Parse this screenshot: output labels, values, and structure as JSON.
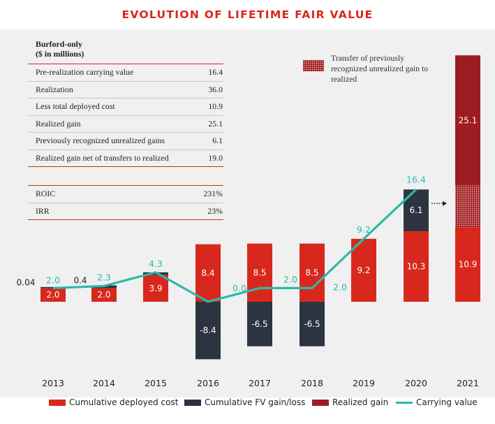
{
  "title": "EVOLUTION OF LIFETIME FAIR VALUE",
  "table": {
    "header_line1": "Burford-only",
    "header_line2": "($ in millions)",
    "rows": [
      {
        "label": "Pre-realization carrying value",
        "value": "16.4"
      },
      {
        "label": "Realization",
        "value": "36.0"
      },
      {
        "label": "Less total deployed cost",
        "value": "10.9"
      },
      {
        "label": "Realized gain",
        "value": "25.1"
      },
      {
        "label": "Previously recognized unrealized gains",
        "value": "6.1"
      },
      {
        "label": "Realized gain net of transfers to realized",
        "value": "19.0"
      }
    ],
    "metrics": [
      {
        "label": "ROIC",
        "value": "231%"
      },
      {
        "label": "IRR",
        "value": "23%"
      }
    ]
  },
  "transfer_note": "Transfer of previously recognized unrealized gain to realized",
  "colors": {
    "deployed": "#d8281d",
    "fv": "#2b3440",
    "realized": "#9d1c21",
    "carrying": "#2bb9a9",
    "title": "#d8281d"
  },
  "chart_data": {
    "type": "bar",
    "title": "EVOLUTION OF LIFETIME FAIR VALUE",
    "categories": [
      "2013",
      "2014",
      "2015",
      "2016",
      "2017",
      "2018",
      "2019",
      "2020",
      "2021"
    ],
    "series": [
      {
        "name": "Cumulative deployed cost",
        "type": "bar",
        "values": [
          2.0,
          2.0,
          3.9,
          8.4,
          8.5,
          8.5,
          9.2,
          10.3,
          10.9
        ],
        "labels": [
          "2.0",
          "2.0",
          "3.9",
          "8.4",
          "8.5",
          "8.5",
          "9.2",
          "10.3",
          "10.9"
        ]
      },
      {
        "name": "Cumulative FV gain/loss",
        "type": "bar",
        "values": [
          0.04,
          0.4,
          0.4,
          -8.4,
          -6.5,
          -6.5,
          0,
          6.1,
          0
        ],
        "labels": [
          "0.04",
          "0.4",
          "",
          "-8.4",
          "-6.5",
          "-6.5",
          "",
          "6.1",
          ""
        ]
      },
      {
        "name": "Realized gain",
        "type": "bar",
        "values": [
          0,
          0,
          0,
          0,
          0,
          0,
          0,
          0,
          25.1
        ],
        "labels": [
          "",
          "",
          "",
          "",
          "",
          "",
          "",
          "",
          "25.1"
        ]
      },
      {
        "name": "Carrying value",
        "type": "line",
        "values": [
          2.0,
          2.3,
          4.3,
          0.0,
          2.0,
          2.0,
          9.2,
          16.4,
          null
        ],
        "labels": [
          "2.0",
          "2.3",
          "4.3",
          "0.0",
          "2.0",
          "2.0",
          "9.2",
          "16.4",
          ""
        ]
      }
    ],
    "transfer_segment": {
      "category": "2021",
      "from": 10.9,
      "to": 17.0
    },
    "legend": [
      "Cumulative deployed cost",
      "Cumulative FV gain/loss",
      "Realized gain",
      "Carrying value"
    ],
    "ylim": [
      -9.5,
      36.0
    ],
    "legend_position": "bottom",
    "grid": false
  }
}
